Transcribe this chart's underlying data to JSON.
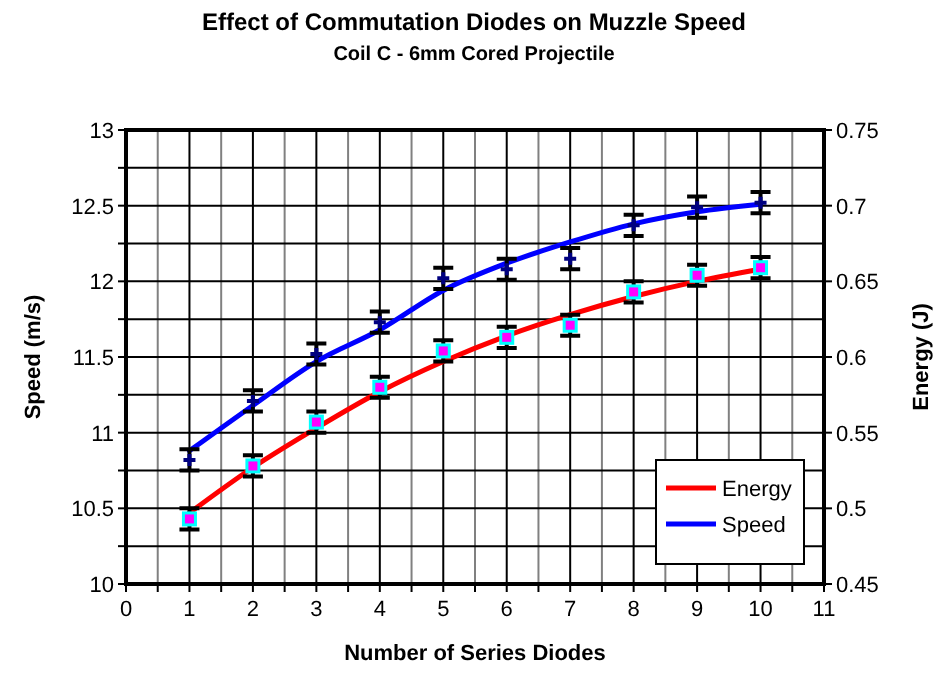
{
  "chart_data": {
    "type": "line",
    "title": "Effect of Commutation Diodes on Muzzle Speed",
    "subtitle": "Coil C - 6mm Cored Projectile",
    "xlabel": "Number of Series Diodes",
    "ylabel": "Speed (m/s)",
    "y2label": "Energy (J)",
    "xlim": [
      0,
      11
    ],
    "xticks": [
      0,
      {
        "value": 0.5,
        "label": null
      },
      1,
      {
        "value": 1.5,
        "label": null
      },
      2,
      {
        "value": 2.5,
        "label": null
      },
      3,
      {
        "value": 3.5,
        "label": null
      },
      4,
      {
        "value": 4.5,
        "label": null
      },
      5,
      {
        "value": 5.5,
        "label": null
      },
      6,
      {
        "value": 6.5,
        "label": null
      },
      7,
      {
        "value": 7.5,
        "label": null
      },
      8,
      {
        "value": 8.5,
        "label": null
      },
      9,
      {
        "value": 9.5,
        "label": null
      },
      10,
      {
        "value": 10.5,
        "label": null
      },
      11
    ],
    "ylim": [
      10,
      13
    ],
    "yticks": [
      10,
      {
        "value": 10.25,
        "label": null
      },
      10.5,
      {
        "value": 10.75,
        "label": null
      },
      11,
      {
        "value": 11.25,
        "label": null
      },
      11.5,
      {
        "value": 11.75,
        "label": null
      },
      12,
      {
        "value": 12.25,
        "label": null
      },
      12.5,
      {
        "value": 12.75,
        "label": null
      },
      13
    ],
    "y2lim": [
      0.45,
      0.75
    ],
    "y2ticks": [
      0.45,
      0.5,
      0.55,
      0.6,
      0.65,
      0.7,
      0.75
    ],
    "grid": true,
    "legend": "bottom right",
    "line_style": "solid",
    "x": [
      1,
      2,
      3,
      4,
      5,
      6,
      7,
      8,
      9,
      10
    ],
    "series": [
      {
        "name": "Energy",
        "axis": "y2",
        "color": "#ff0000",
        "marker": "none",
        "values": [
          0.497,
          0.527,
          0.553,
          0.577,
          0.597,
          0.614,
          0.628,
          0.64,
          0.65,
          0.658
        ]
      },
      {
        "name": "Speed",
        "color": "#0000ff",
        "marker": "none",
        "values": [
          10.88,
          11.18,
          11.47,
          11.68,
          11.94,
          12.12,
          12.26,
          12.38,
          12.46,
          12.51
        ]
      },
      {
        "type": "scatter",
        "axis": "y2",
        "color": "#00ffff",
        "marker": "square",
        "values": [
          0.493,
          0.528,
          0.557,
          0.58,
          0.604,
          0.613,
          0.621,
          0.643,
          0.654,
          0.659
        ],
        "errors": [
          0.007,
          0.007,
          0.007,
          0.007,
          0.007,
          0.007,
          0.007,
          0.007,
          0.007,
          0.007
        ]
      },
      {
        "type": "scatter",
        "color": "#000080",
        "marker": "cross",
        "values": [
          10.82,
          11.21,
          11.52,
          11.73,
          12.02,
          12.08,
          12.15,
          12.37,
          12.49,
          12.52
        ],
        "errors": [
          0.07,
          0.07,
          0.07,
          0.07,
          0.07,
          0.07,
          0.07,
          0.07,
          0.07,
          0.07
        ]
      }
    ]
  }
}
